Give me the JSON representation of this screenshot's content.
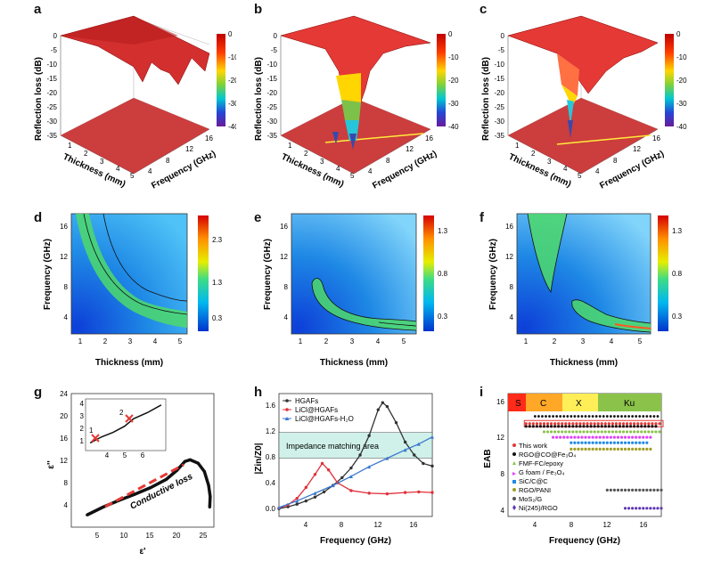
{
  "panels": {
    "a": {
      "label": "a",
      "zlabel": "Reflection loss (dB)",
      "xlabel": "Thickness (mm)",
      "ylabel": "Frequency (GHz)"
    },
    "b": {
      "label": "b",
      "zlabel": "Reflection loss (dB)",
      "xlabel": "Thickness (mm)",
      "ylabel": "Frequency (GHz)"
    },
    "c": {
      "label": "c",
      "zlabel": "Reflection loss (dB)",
      "xlabel": "Thickness (mm)",
      "ylabel": "Frequency (GHz)"
    },
    "d": {
      "label": "d",
      "xlabel": "Thickness (mm)",
      "ylabel": "Frequency (GHz)"
    },
    "e": {
      "label": "e",
      "xlabel": "Thickness (mm)",
      "ylabel": "Frequency (GHz)"
    },
    "f": {
      "label": "f",
      "xlabel": "Thickness (mm)",
      "ylabel": "Frequency (GHz)"
    },
    "g": {
      "label": "g",
      "xlabel": "ε'",
      "ylabel": "ε''",
      "annotation": "Conductive loss",
      "inset_points": [
        "1",
        "2"
      ]
    },
    "h": {
      "label": "h",
      "xlabel": "Frequency (GHz)",
      "ylabel": "|Zin/Z0|",
      "annotation": "Impedance matching area"
    },
    "i": {
      "label": "i",
      "xlabel": "Frequency (GHz)",
      "ylabel": "EAB",
      "bands": [
        "S",
        "C",
        "X",
        "Ku"
      ]
    }
  },
  "colors": {
    "hgaf": "#333333",
    "licl": "#e0303a",
    "h2o": "#3a78d0",
    "band_s": "#ff2a1a",
    "band_c": "#ffa726",
    "band_x": "#ffee58",
    "band_ku": "#8bc34a"
  },
  "chart_data": [
    {
      "panel": "a",
      "type": "heatmap",
      "title": "",
      "zlim": [
        -40,
        0
      ],
      "x_ticks": [
        "1",
        "2",
        "3",
        "4",
        "5"
      ],
      "y_ticks": [
        "4",
        "8",
        "12",
        "16"
      ],
      "z_ticks": [
        "0",
        "-5",
        "-10",
        "-15",
        "-20",
        "-25",
        "-30",
        "-35"
      ],
      "colorbar_ticks": [
        "0",
        "-10",
        "-20",
        "-30",
        "-40"
      ]
    },
    {
      "panel": "b",
      "type": "heatmap",
      "title": "",
      "zlim": [
        -40,
        0
      ],
      "x_ticks": [
        "1",
        "2",
        "3",
        "4",
        "5"
      ],
      "y_ticks": [
        "4",
        "8",
        "12",
        "16"
      ],
      "z_ticks": [
        "0",
        "-5",
        "-10",
        "-15",
        "-20",
        "-25",
        "-30",
        "-35"
      ],
      "colorbar_ticks": [
        "0",
        "-10",
        "-20",
        "-30",
        "-40"
      ]
    },
    {
      "panel": "c",
      "type": "heatmap",
      "title": "",
      "zlim": [
        -40,
        0
      ],
      "x_ticks": [
        "1",
        "2",
        "3",
        "4",
        "5"
      ],
      "y_ticks": [
        "4",
        "8",
        "12",
        "16"
      ],
      "z_ticks": [
        "0",
        "-5",
        "-10",
        "-15",
        "-20",
        "-25",
        "-30",
        "-35"
      ],
      "colorbar_ticks": [
        "0",
        "-10",
        "-20",
        "-30",
        "-40"
      ]
    },
    {
      "panel": "d",
      "type": "heatmap",
      "x_ticks": [
        "1",
        "2",
        "3",
        "4",
        "5"
      ],
      "y_ticks": [
        "4",
        "8",
        "12",
        "16"
      ],
      "colorbar_ticks": [
        "2.3",
        "1.3",
        "0.3"
      ]
    },
    {
      "panel": "e",
      "type": "heatmap",
      "x_ticks": [
        "1",
        "2",
        "3",
        "4",
        "5"
      ],
      "y_ticks": [
        "4",
        "8",
        "12",
        "16"
      ],
      "colorbar_ticks": [
        "1.3",
        "0.8",
        "0.3"
      ]
    },
    {
      "panel": "f",
      "type": "heatmap",
      "x_ticks": [
        "1",
        "2",
        "3",
        "4",
        "5"
      ],
      "y_ticks": [
        "4",
        "8",
        "12",
        "16"
      ],
      "colorbar_ticks": [
        "1.3",
        "0.8",
        "0.3"
      ]
    },
    {
      "panel": "g",
      "type": "line",
      "xlim": [
        0,
        27
      ],
      "ylim": [
        0,
        24
      ],
      "x_ticks": [
        "5",
        "10",
        "15",
        "20",
        "25"
      ],
      "y_ticks": [
        "4",
        "8",
        "12",
        "16",
        "20",
        "24"
      ],
      "series": [
        {
          "values": [
            [
              3,
              2.2
            ],
            [
              6,
              3.6
            ],
            [
              9,
              4.8
            ],
            [
              12,
              5.9
            ],
            [
              15,
              7.1
            ],
            [
              18,
              8.6
            ],
            [
              20,
              10.2
            ],
            [
              21.5,
              11.8
            ],
            [
              22.5,
              12.1
            ],
            [
              24,
              11.5
            ],
            [
              25.2,
              10
            ],
            [
              26,
              7.5
            ],
            [
              26.3,
              5.5
            ],
            [
              26.2,
              3.6
            ]
          ]
        }
      ],
      "inset": {
        "x_ticks": [
          "4",
          "5",
          "6"
        ],
        "y_ticks": [
          "1",
          "2",
          "3",
          "4"
        ],
        "points": [
          [
            3.7,
            1.3
          ],
          [
            4.2,
            1.7
          ],
          [
            4.7,
            2.0
          ],
          [
            5.2,
            2.4
          ],
          [
            5.6,
            2.9
          ],
          [
            6.2,
            3.3
          ],
          [
            6.8,
            3.8
          ]
        ]
      }
    },
    {
      "panel": "h",
      "type": "line",
      "xlim": [
        1,
        18
      ],
      "ylim": [
        -0.1,
        1.8
      ],
      "x_ticks": [
        "4",
        "8",
        "12",
        "16"
      ],
      "y_ticks": [
        "0.0",
        "0.4",
        "0.8",
        "1.2",
        "1.6"
      ],
      "series": [
        {
          "name": "HGAFs",
          "values": [
            [
              1,
              0.02
            ],
            [
              2,
              0.05
            ],
            [
              3,
              0.09
            ],
            [
              4,
              0.14
            ],
            [
              5,
              0.2
            ],
            [
              6,
              0.28
            ],
            [
              7,
              0.38
            ],
            [
              8,
              0.5
            ],
            [
              9,
              0.65
            ],
            [
              10,
              0.85
            ],
            [
              11,
              1.15
            ],
            [
              12,
              1.55
            ],
            [
              12.5,
              1.66
            ],
            [
              13,
              1.6
            ],
            [
              14,
              1.35
            ],
            [
              15,
              1.05
            ],
            [
              16,
              0.85
            ],
            [
              17,
              0.72
            ],
            [
              18,
              0.68
            ]
          ]
        },
        {
          "name": "LiCl@HGAFs",
          "values": [
            [
              1,
              0.03
            ],
            [
              2,
              0.08
            ],
            [
              3,
              0.18
            ],
            [
              4,
              0.35
            ],
            [
              5,
              0.55
            ],
            [
              5.8,
              0.72
            ],
            [
              6.5,
              0.62
            ],
            [
              7.5,
              0.42
            ],
            [
              9,
              0.3
            ],
            [
              11,
              0.26
            ],
            [
              13,
              0.25
            ],
            [
              15,
              0.27
            ],
            [
              16.5,
              0.28
            ],
            [
              18,
              0.27
            ]
          ]
        },
        {
          "name": "LiCl@HGAFs-H₂O",
          "values": [
            [
              1,
              0.04
            ],
            [
              3,
              0.14
            ],
            [
              5,
              0.26
            ],
            [
              7,
              0.38
            ],
            [
              9,
              0.52
            ],
            [
              11,
              0.67
            ],
            [
              13,
              0.8
            ],
            [
              15,
              0.93
            ],
            [
              16.5,
              1.02
            ],
            [
              18,
              1.13
            ]
          ]
        }
      ],
      "band": [
        0.8,
        1.2
      ]
    },
    {
      "panel": "i",
      "type": "scatter",
      "xlim": [
        1,
        18
      ],
      "ylim": [
        3,
        16.5
      ],
      "x_ticks": [
        "4",
        "8",
        "12",
        "16"
      ],
      "y_ticks": [
        "4",
        "8",
        "12",
        "16"
      ],
      "series": [
        {
          "name": "This work",
          "values": [
            [
              3,
              13.2
            ],
            [
              18,
              13.2
            ]
          ]
        },
        {
          "name": "RGO@CO@Fe₃O₄",
          "values": [
            [
              3,
              12.9
            ],
            [
              17.5,
              12.9
            ]
          ]
        },
        {
          "name": "FMF-FC/epoxy",
          "values": [
            [
              5,
              12.3
            ],
            [
              18,
              12.3
            ]
          ]
        },
        {
          "name": "G foam / Fe₃O₄",
          "values": [
            [
              6,
              11.7
            ],
            [
              17,
              11.7
            ]
          ]
        },
        {
          "name": "SiC/C@C",
          "values": [
            [
              8,
              11.1
            ],
            [
              16.5,
              11.1
            ]
          ]
        },
        {
          "name": "RGO/PANI",
          "values": [
            [
              8,
              10.4
            ],
            [
              17,
              10.4
            ]
          ]
        },
        {
          "name": "MoS₂/G",
          "values": [
            [
              12,
              5.9
            ],
            [
              18,
              5.9
            ]
          ]
        },
        {
          "name": "Ni(245)/RGO",
          "values": [
            [
              14,
              3.9
            ],
            [
              18,
              3.9
            ]
          ]
        }
      ]
    }
  ]
}
